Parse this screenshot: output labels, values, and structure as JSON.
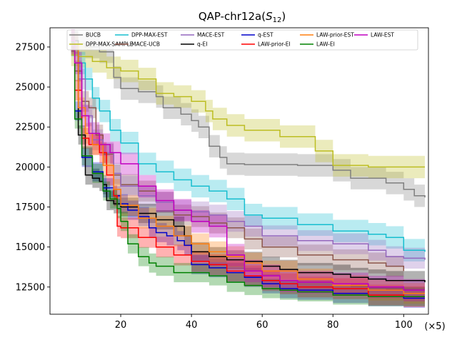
{
  "chart_data": {
    "type": "line",
    "title_main": "QAP-chr12a(",
    "title_math": "S",
    "title_sub": "12",
    "title_close": ")",
    "x_multiplier": "(×5)",
    "xlim": [
      0,
      107
    ],
    "ylim": [
      10800,
      28700
    ],
    "xticks": [
      20,
      40,
      60,
      80,
      100
    ],
    "yticks": [
      12500,
      15000,
      17500,
      20000,
      22500,
      25000,
      27500
    ],
    "grid": false,
    "legend_position": "top",
    "band_alpha": 0.3,
    "series": [
      {
        "name": "BUCB",
        "color": "#7f7f7f",
        "x": [
          6,
          8,
          10,
          14,
          18,
          20,
          25,
          30,
          32,
          37,
          40,
          42,
          45,
          48,
          50,
          55,
          70,
          80,
          85,
          95,
          100,
          103,
          106
        ],
        "y": [
          27800,
          27700,
          27500,
          27200,
          25600,
          24900,
          24700,
          24400,
          23700,
          23300,
          22900,
          22500,
          21300,
          20600,
          20200,
          20150,
          20100,
          19800,
          19300,
          19000,
          18600,
          18200,
          18100
        ],
        "band": 700
      },
      {
        "name": "DPP-MAX-SAMPLE",
        "color": "#bcbd22",
        "x": [
          6,
          8,
          12,
          16,
          20,
          25,
          30,
          35,
          40,
          44,
          46,
          50,
          55,
          65,
          72,
          75,
          80,
          90,
          106
        ],
        "y": [
          27000,
          26900,
          26600,
          26200,
          26000,
          25500,
          24600,
          24400,
          24100,
          23500,
          23000,
          22600,
          22300,
          21900,
          21900,
          21000,
          20100,
          20000,
          20000
        ],
        "band": 700
      },
      {
        "name": "DPP-MAX-EST",
        "color": "#17becf",
        "x": [
          6,
          8,
          10,
          12,
          14,
          17,
          20,
          25,
          30,
          35,
          40,
          45,
          50,
          55,
          60,
          70,
          80,
          90,
          95,
          100,
          106
        ],
        "y": [
          27600,
          26500,
          25500,
          24300,
          23500,
          22300,
          21500,
          20200,
          19700,
          19200,
          18800,
          18500,
          18000,
          17000,
          16800,
          16400,
          16000,
          15800,
          15600,
          14800,
          14700
        ],
        "band": 700
      },
      {
        "name": "MACE-UCB",
        "color": "#8c564b",
        "x": [
          6,
          7,
          9,
          11,
          13,
          15,
          18,
          20,
          25,
          30,
          35,
          40,
          45,
          50,
          55,
          60,
          70,
          80,
          90,
          95,
          100
        ],
        "y": [
          27700,
          26000,
          24100,
          23700,
          22000,
          20800,
          19500,
          18900,
          18500,
          17800,
          17000,
          16900,
          16500,
          16200,
          15500,
          15000,
          14500,
          14200,
          14000,
          13800,
          13500
        ],
        "band": 650
      },
      {
        "name": "MACE-EST",
        "color": "#9467bd",
        "x": [
          6,
          8,
          10,
          12,
          15,
          18,
          20,
          25,
          30,
          35,
          40,
          45,
          50,
          55,
          60,
          70,
          80,
          90,
          95,
          100,
          106
        ],
        "y": [
          27600,
          25500,
          23200,
          21700,
          20900,
          19600,
          18800,
          18200,
          17800,
          17300,
          17200,
          17000,
          16600,
          16300,
          15700,
          15400,
          15200,
          14800,
          14400,
          14300,
          14200
        ],
        "band": 650
      },
      {
        "name": "q-EI",
        "color": "#000000",
        "x": [
          6,
          8,
          10,
          12,
          14,
          15,
          16,
          18,
          20,
          25,
          30,
          35,
          38,
          40,
          45,
          50,
          55,
          60,
          65,
          70,
          80,
          85,
          90,
          95,
          100,
          106
        ],
        "y": [
          27900,
          22000,
          19500,
          19300,
          19100,
          18900,
          17900,
          17700,
          17500,
          17100,
          16700,
          16300,
          15700,
          14700,
          14400,
          14200,
          14100,
          13800,
          13600,
          13400,
          13300,
          13100,
          13000,
          12900,
          12900,
          12800
        ],
        "band": 600
      },
      {
        "name": "q-EST",
        "color": "#0000cc",
        "x": [
          6,
          7,
          9,
          12,
          15,
          18,
          20,
          22,
          25,
          28,
          30,
          33,
          36,
          38,
          40,
          45,
          50,
          55,
          60,
          65,
          70,
          80,
          90,
          100,
          106
        ],
        "y": [
          27900,
          23500,
          20600,
          19700,
          18700,
          18200,
          17700,
          17300,
          16900,
          16200,
          15900,
          15700,
          15400,
          15100,
          13900,
          13700,
          13400,
          13100,
          12700,
          12400,
          12300,
          12100,
          11900,
          11800,
          11800
        ],
        "band": 600
      },
      {
        "name": "LAW-prior-EI",
        "color": "#ff0000",
        "x": [
          6,
          7,
          9,
          11,
          14,
          16,
          18,
          19,
          20,
          25,
          30,
          35,
          40,
          45,
          50,
          55,
          60,
          65,
          70,
          80,
          90,
          100,
          106
        ],
        "y": [
          27900,
          24800,
          21800,
          21400,
          20900,
          19500,
          18200,
          16300,
          16200,
          15600,
          15000,
          14500,
          14100,
          13900,
          13500,
          13200,
          12900,
          12700,
          12500,
          12400,
          12000,
          11900,
          11900
        ],
        "band": 650
      },
      {
        "name": "LAW-prior-EST",
        "color": "#ff7f0e",
        "x": [
          6,
          8,
          10,
          12,
          15,
          18,
          20,
          25,
          30,
          35,
          40,
          45,
          50,
          55,
          60,
          70,
          80,
          90,
          100,
          106
        ],
        "y": [
          27700,
          23700,
          22100,
          21400,
          20100,
          18600,
          17600,
          16800,
          16300,
          15700,
          15200,
          14700,
          14400,
          14000,
          13500,
          13000,
          12600,
          12300,
          12100,
          12100
        ],
        "band": 650
      },
      {
        "name": "LAW-EI",
        "color": "#008000",
        "x": [
          6,
          7,
          9,
          12,
          15,
          17,
          19,
          20,
          22,
          25,
          28,
          30,
          35,
          40,
          45,
          50,
          55,
          60,
          65,
          70,
          80,
          90,
          100,
          106
        ],
        "y": [
          27800,
          23000,
          20700,
          19600,
          18500,
          18000,
          17400,
          16600,
          15200,
          14400,
          14000,
          13800,
          13400,
          13400,
          13200,
          12800,
          12600,
          12400,
          12300,
          12200,
          12000,
          11900,
          11900,
          11900
        ],
        "band": 600
      },
      {
        "name": "LAW-EST",
        "color": "#c000c0",
        "x": [
          6,
          7,
          9,
          11,
          14,
          17,
          20,
          25,
          30,
          35,
          40,
          45,
          50,
          55,
          60,
          65,
          70,
          80,
          90,
          100,
          106
        ],
        "y": [
          27900,
          26500,
          23200,
          22100,
          21400,
          20900,
          20200,
          18800,
          17900,
          17300,
          16600,
          16300,
          14500,
          13500,
          13200,
          12900,
          12800,
          12700,
          12500,
          12300,
          12300
        ],
        "band": 700
      }
    ]
  }
}
